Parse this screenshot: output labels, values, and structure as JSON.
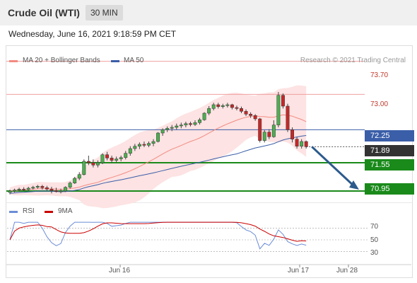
{
  "header": {
    "title": "Crude Oil (WTI)",
    "timeframe": "30 MIN"
  },
  "datetime": "Wednesday, June 16, 2021 9:18:59 PM CET",
  "legend": {
    "ma20_bb": {
      "label": "MA 20 + Bollinger Bands",
      "color": "#f28b82"
    },
    "ma50": {
      "label": "MA 50",
      "color": "#3a5ea8"
    },
    "copyright": "Research © 2021 Trading Central"
  },
  "levels": {
    "resistance2": "73.70",
    "resistance1": "73.00",
    "ma50_value": "72.25",
    "last_price": "71.89",
    "support1": "71.55",
    "support2": "70.95"
  },
  "rsi_legend": {
    "rsi": {
      "label": "RSI",
      "color": "#6b8cd6"
    },
    "ma9": {
      "label": "9MA",
      "color": "#cc0000"
    }
  },
  "chart_data": {
    "type": "candlestick",
    "y_range": [
      70.8,
      73.95
    ],
    "candles": [
      [
        70.92,
        70.98,
        70.88,
        70.95
      ],
      [
        70.95,
        71.0,
        70.92,
        70.97
      ],
      [
        70.97,
        71.02,
        70.94,
        70.99
      ],
      [
        70.99,
        71.03,
        70.95,
        70.98
      ],
      [
        70.98,
        71.04,
        70.95,
        71.01
      ],
      [
        71.01,
        71.06,
        70.98,
        71.03
      ],
      [
        71.03,
        71.08,
        71.0,
        71.05
      ],
      [
        71.05,
        71.08,
        70.98,
        71.02
      ],
      [
        71.02,
        71.06,
        70.96,
        70.99
      ],
      [
        70.99,
        71.04,
        70.9,
        70.96
      ],
      [
        70.96,
        71.02,
        70.92,
        70.94
      ],
      [
        70.94,
        71.0,
        70.9,
        70.95
      ],
      [
        70.95,
        71.05,
        70.93,
        71.03
      ],
      [
        71.03,
        71.15,
        71.0,
        71.12
      ],
      [
        71.12,
        71.25,
        71.1,
        71.22
      ],
      [
        71.22,
        71.35,
        71.18,
        71.3
      ],
      [
        71.3,
        71.62,
        71.28,
        71.58
      ],
      [
        71.58,
        71.7,
        71.5,
        71.55
      ],
      [
        71.55,
        71.62,
        71.45,
        71.5
      ],
      [
        71.5,
        71.6,
        71.45,
        71.55
      ],
      [
        71.55,
        71.75,
        71.52,
        71.72
      ],
      [
        71.72,
        71.78,
        71.6,
        71.65
      ],
      [
        71.65,
        71.7,
        71.55,
        71.6
      ],
      [
        71.6,
        71.68,
        71.56,
        71.63
      ],
      [
        71.63,
        71.7,
        71.58,
        71.66
      ],
      [
        71.66,
        71.8,
        71.62,
        71.75
      ],
      [
        71.75,
        71.9,
        71.7,
        71.85
      ],
      [
        71.85,
        71.95,
        71.8,
        71.9
      ],
      [
        71.9,
        71.98,
        71.84,
        71.94
      ],
      [
        71.94,
        72.0,
        71.88,
        71.92
      ],
      [
        71.92,
        72.0,
        71.88,
        71.96
      ],
      [
        71.96,
        72.05,
        71.9,
        72.0
      ],
      [
        72.0,
        72.2,
        71.98,
        72.18
      ],
      [
        72.18,
        72.28,
        72.12,
        72.25
      ],
      [
        72.25,
        72.32,
        72.2,
        72.28
      ],
      [
        72.28,
        72.35,
        72.22,
        72.3
      ],
      [
        72.3,
        72.38,
        72.25,
        72.33
      ],
      [
        72.33,
        72.4,
        72.28,
        72.35
      ],
      [
        72.35,
        72.42,
        72.3,
        72.38
      ],
      [
        72.38,
        72.42,
        72.32,
        72.36
      ],
      [
        72.36,
        72.45,
        72.33,
        72.4
      ],
      [
        72.4,
        72.5,
        72.36,
        72.46
      ],
      [
        72.46,
        72.62,
        72.44,
        72.6
      ],
      [
        72.6,
        72.75,
        72.56,
        72.7
      ],
      [
        72.7,
        72.82,
        72.66,
        72.78
      ],
      [
        72.78,
        72.82,
        72.7,
        72.74
      ],
      [
        72.74,
        72.8,
        72.7,
        72.76
      ],
      [
        72.76,
        72.82,
        72.72,
        72.78
      ],
      [
        72.78,
        72.8,
        72.68,
        72.72
      ],
      [
        72.72,
        72.76,
        72.66,
        72.7
      ],
      [
        72.7,
        72.74,
        72.6,
        72.64
      ],
      [
        72.64,
        72.68,
        72.54,
        72.58
      ],
      [
        72.58,
        72.62,
        72.5,
        72.55
      ],
      [
        72.55,
        72.58,
        72.44,
        72.48
      ],
      [
        72.48,
        72.5,
        71.98,
        72.02
      ],
      [
        72.02,
        72.24,
        71.98,
        72.2
      ],
      [
        72.2,
        72.26,
        72.05,
        72.1
      ],
      [
        72.1,
        72.45,
        72.08,
        72.35
      ],
      [
        72.35,
        73.05,
        72.3,
        72.98
      ],
      [
        72.98,
        73.02,
        72.7,
        72.75
      ],
      [
        72.75,
        72.8,
        72.2,
        72.25
      ],
      [
        72.25,
        72.3,
        71.98,
        72.05
      ],
      [
        72.05,
        72.1,
        71.85,
        71.9
      ],
      [
        71.9,
        72.05,
        71.85,
        72.0
      ],
      [
        72.0,
        72.02,
        71.85,
        71.89
      ]
    ],
    "forecast": {
      "from": 71.89,
      "to": 70.95
    },
    "rsi_ticks": [
      70,
      50,
      30
    ],
    "x_labels": [
      "Jun 16",
      "Jun 17",
      "Jun 28"
    ]
  }
}
